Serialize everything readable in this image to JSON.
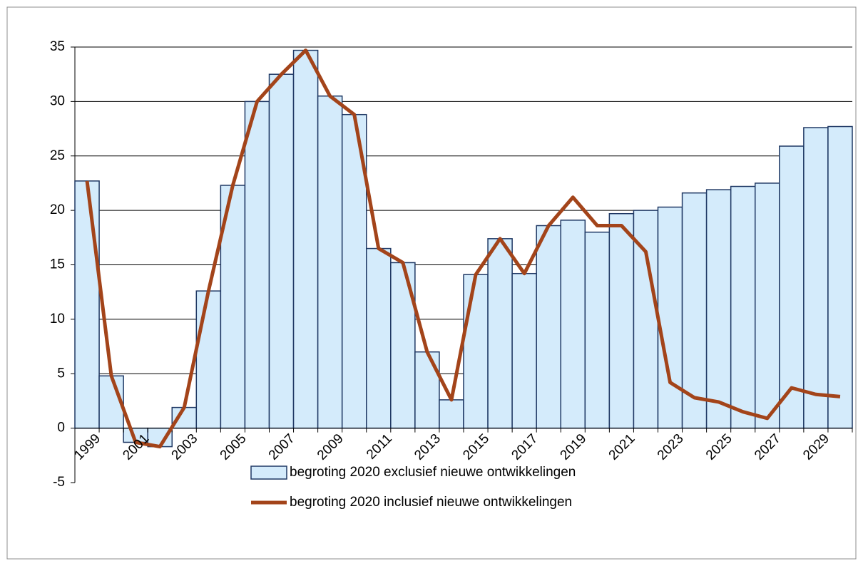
{
  "chart_data": {
    "type": "bar_line",
    "categories": [
      "1999",
      null,
      "2001",
      null,
      "2003",
      null,
      "2005",
      null,
      "2007",
      null,
      "2009",
      null,
      "2011",
      null,
      "2013",
      null,
      "2015",
      null,
      "2017",
      null,
      "2019",
      null,
      "2021",
      null,
      "2023",
      null,
      "2025",
      null,
      "2027",
      null,
      "2029",
      null
    ],
    "series": [
      {
        "name": "begroting 2020 exclusief nieuwe ontwikkelingen",
        "type": "bar",
        "color": "#d4ebfb",
        "edge_color": "#1f3864",
        "values": [
          22.7,
          4.8,
          -1.3,
          -1.7,
          1.9,
          12.6,
          22.3,
          30.0,
          32.5,
          34.7,
          30.5,
          28.8,
          16.5,
          15.2,
          7.0,
          2.6,
          14.1,
          17.4,
          14.2,
          18.6,
          19.1,
          18.0,
          19.7,
          20.0,
          20.3,
          21.6,
          21.9,
          22.2,
          22.5,
          25.9,
          27.6,
          27.7
        ]
      },
      {
        "name": "begroting 2020 inclusief nieuwe ontwikkelingen",
        "type": "line",
        "color": "#a3441a",
        "values": [
          22.7,
          4.8,
          -1.3,
          -1.7,
          1.9,
          12.6,
          22.3,
          30.0,
          32.5,
          34.7,
          30.5,
          28.8,
          16.5,
          15.2,
          7.0,
          2.6,
          14.1,
          17.4,
          14.2,
          18.6,
          21.2,
          18.6,
          18.6,
          16.2,
          4.2,
          2.8,
          2.4,
          1.5,
          0.9,
          3.7,
          3.1,
          2.9
        ]
      }
    ],
    "ylim": [
      -5,
      35
    ],
    "yticks": [
      -5,
      0,
      5,
      10,
      15,
      20,
      25,
      30,
      35
    ],
    "grid": true,
    "legend": "bottom"
  }
}
